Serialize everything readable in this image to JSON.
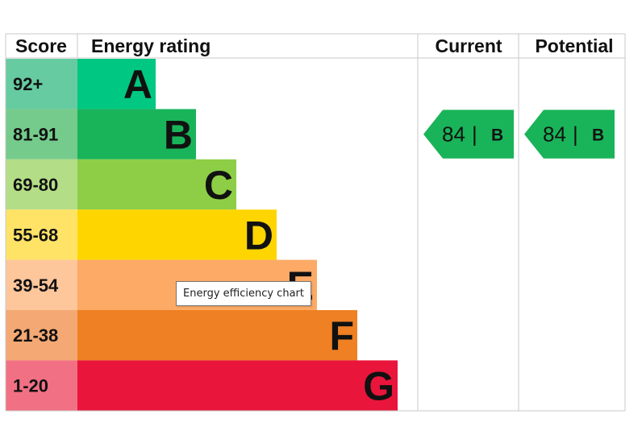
{
  "chart_data": {
    "type": "bar",
    "headers": {
      "score": "Score",
      "rating": "Energy rating",
      "current": "Current",
      "potential": "Potential"
    },
    "bands": [
      {
        "score": "92+",
        "letter": "A",
        "bar_color": "#00c781",
        "score_color": "#66cba0"
      },
      {
        "score": "81-91",
        "letter": "B",
        "bar_color": "#19b459",
        "score_color": "#75cb8b"
      },
      {
        "score": "69-80",
        "letter": "C",
        "bar_color": "#8dce46",
        "score_color": "#b4dd87"
      },
      {
        "score": "55-68",
        "letter": "D",
        "bar_color": "#ffd500",
        "score_color": "#ffe366"
      },
      {
        "score": "39-54",
        "letter": "E",
        "bar_color": "#fcaa65",
        "score_color": "#fdc69b"
      },
      {
        "score": "21-38",
        "letter": "F",
        "bar_color": "#ef8023",
        "score_color": "#f4a874"
      },
      {
        "score": "1-20",
        "letter": "G",
        "bar_color": "#e9153b",
        "score_color": "#f27084"
      }
    ],
    "current": {
      "value": 84,
      "separator": "|",
      "band": "B",
      "color": "#19b459"
    },
    "potential": {
      "value": 84,
      "separator": "|",
      "band": "B",
      "color": "#19b459"
    }
  },
  "tooltip": "Energy efficiency chart"
}
